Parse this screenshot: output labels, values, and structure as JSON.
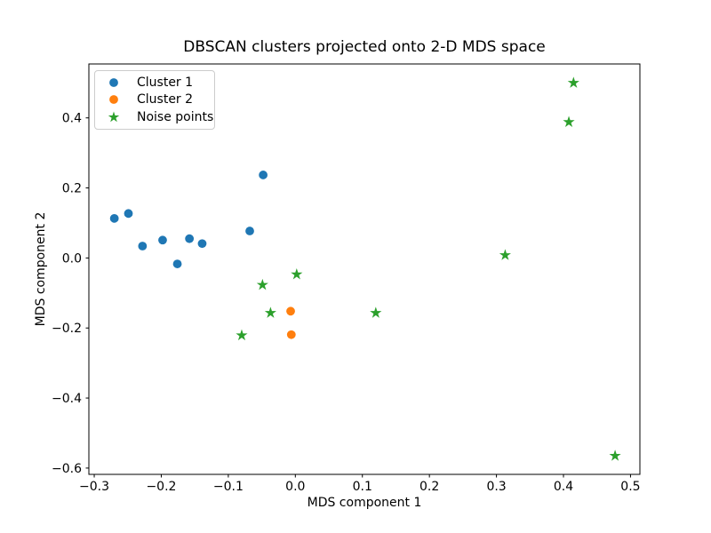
{
  "chart_data": {
    "type": "scatter",
    "title": "DBSCAN clusters projected onto 2-D MDS space",
    "xlabel": "MDS component 1",
    "ylabel": "MDS component 2",
    "xlim": [
      -0.308,
      0.514
    ],
    "ylim": [
      -0.618,
      0.554
    ],
    "xticks": [
      -0.3,
      -0.2,
      -0.1,
      0.0,
      0.1,
      0.2,
      0.3,
      0.4,
      0.5
    ],
    "yticks": [
      -0.6,
      -0.4,
      -0.2,
      0.0,
      0.2,
      0.4
    ],
    "grid": false,
    "legend_position": "upper left",
    "series": [
      {
        "name": "Cluster 1",
        "marker": "circle",
        "color": "#1f77b4",
        "points": [
          [
            -0.27,
            0.113
          ],
          [
            -0.249,
            0.127
          ],
          [
            -0.228,
            0.034
          ],
          [
            -0.198,
            0.051
          ],
          [
            -0.176,
            -0.017
          ],
          [
            -0.158,
            0.055
          ],
          [
            -0.139,
            0.041
          ],
          [
            -0.068,
            0.077
          ],
          [
            -0.048,
            0.237
          ]
        ]
      },
      {
        "name": "Cluster 2",
        "marker": "circle",
        "color": "#ff7f0e",
        "points": [
          [
            -0.007,
            -0.152
          ],
          [
            -0.006,
            -0.219
          ]
        ]
      },
      {
        "name": "Noise points",
        "marker": "star",
        "color": "#2ca02c",
        "points": [
          [
            -0.049,
            -0.077
          ],
          [
            -0.037,
            -0.157
          ],
          [
            -0.08,
            -0.221
          ],
          [
            0.002,
            -0.047
          ],
          [
            0.12,
            -0.157
          ],
          [
            0.313,
            0.008
          ],
          [
            0.408,
            0.388
          ],
          [
            0.415,
            0.5
          ],
          [
            0.477,
            -0.565
          ]
        ]
      }
    ]
  }
}
